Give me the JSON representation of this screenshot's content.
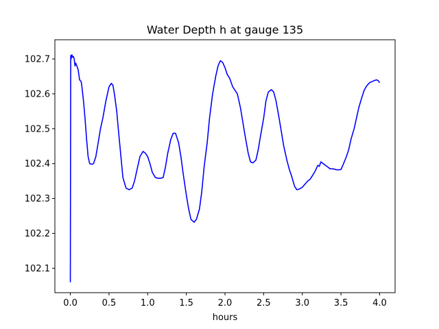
{
  "chart_data": {
    "type": "line",
    "title": "Water Depth h at gauge 135",
    "xlabel": "hours",
    "ylabel": "",
    "xlim": [
      -0.2,
      4.2
    ],
    "ylim": [
      102.03,
      102.755
    ],
    "xticks": [
      {
        "value": 0.0,
        "label": "0.0"
      },
      {
        "value": 0.5,
        "label": "0.5"
      },
      {
        "value": 1.0,
        "label": "1.0"
      },
      {
        "value": 1.5,
        "label": "1.5"
      },
      {
        "value": 2.0,
        "label": "2.0"
      },
      {
        "value": 2.5,
        "label": "2.5"
      },
      {
        "value": 3.0,
        "label": "3.0"
      },
      {
        "value": 3.5,
        "label": "3.5"
      },
      {
        "value": 4.0,
        "label": "4.0"
      }
    ],
    "yticks": [
      {
        "value": 102.1,
        "label": "102.1"
      },
      {
        "value": 102.2,
        "label": "102.2"
      },
      {
        "value": 102.3,
        "label": "102.3"
      },
      {
        "value": 102.4,
        "label": "102.4"
      },
      {
        "value": 102.5,
        "label": "102.5"
      },
      {
        "value": 102.6,
        "label": "102.6"
      },
      {
        "value": 102.7,
        "label": "102.7"
      }
    ],
    "grid": false,
    "series": [
      {
        "color": "#0000ff",
        "x": [
          0.0,
          0.005,
          0.01,
          0.02,
          0.03,
          0.04,
          0.05,
          0.06,
          0.07,
          0.08,
          0.1,
          0.12,
          0.14,
          0.15,
          0.17,
          0.19,
          0.21,
          0.23,
          0.25,
          0.28,
          0.3,
          0.33,
          0.36,
          0.39,
          0.42,
          0.46,
          0.5,
          0.53,
          0.55,
          0.57,
          0.6,
          0.62,
          0.65,
          0.68,
          0.72,
          0.76,
          0.8,
          0.83,
          0.86,
          0.9,
          0.94,
          0.97,
          1.0,
          1.03,
          1.06,
          1.1,
          1.13,
          1.17,
          1.2,
          1.23,
          1.26,
          1.3,
          1.33,
          1.36,
          1.4,
          1.43,
          1.46,
          1.5,
          1.53,
          1.56,
          1.6,
          1.63,
          1.67,
          1.7,
          1.73,
          1.77,
          1.8,
          1.84,
          1.88,
          1.91,
          1.94,
          1.97,
          2.0,
          2.03,
          2.06,
          2.1,
          2.13,
          2.16,
          2.2,
          2.23,
          2.26,
          2.3,
          2.33,
          2.36,
          2.4,
          2.43,
          2.46,
          2.5,
          2.53,
          2.56,
          2.6,
          2.63,
          2.66,
          2.7,
          2.73,
          2.76,
          2.8,
          2.83,
          2.86,
          2.9,
          2.93,
          2.96,
          3.0,
          3.03,
          3.07,
          3.1,
          3.13,
          3.17,
          3.2,
          3.22,
          3.24,
          3.27,
          3.3,
          3.33,
          3.36,
          3.4,
          3.43,
          3.46,
          3.5,
          3.53,
          3.57,
          3.6,
          3.63,
          3.67,
          3.7,
          3.73,
          3.77,
          3.8,
          3.83,
          3.87,
          3.9,
          3.93,
          3.96,
          3.98,
          4.0
        ],
        "y": [
          102.06,
          102.71,
          102.7,
          102.712,
          102.705,
          102.707,
          102.7,
          102.68,
          102.688,
          102.682,
          102.67,
          102.64,
          102.635,
          102.62,
          102.58,
          102.53,
          102.47,
          102.42,
          102.4,
          102.398,
          102.4,
          102.42,
          102.46,
          102.5,
          102.53,
          102.58,
          102.62,
          102.63,
          102.625,
          102.6,
          102.55,
          102.5,
          102.43,
          102.36,
          102.33,
          102.325,
          102.33,
          102.35,
          102.38,
          102.42,
          102.435,
          102.43,
          102.42,
          102.4,
          102.375,
          102.36,
          102.358,
          102.358,
          102.36,
          102.39,
          102.43,
          102.47,
          102.487,
          102.487,
          102.46,
          102.42,
          102.37,
          102.31,
          102.27,
          102.24,
          102.232,
          102.24,
          102.27,
          102.32,
          102.39,
          102.46,
          102.53,
          102.6,
          102.65,
          102.68,
          102.695,
          102.69,
          102.675,
          102.655,
          102.645,
          102.62,
          102.61,
          102.6,
          102.56,
          102.52,
          102.48,
          102.43,
          102.405,
          102.402,
          102.41,
          102.44,
          102.48,
          102.53,
          102.58,
          102.605,
          102.612,
          102.605,
          102.58,
          102.53,
          102.49,
          102.45,
          102.41,
          102.385,
          102.365,
          102.335,
          102.325,
          102.327,
          102.332,
          102.34,
          102.35,
          102.355,
          102.365,
          102.38,
          102.395,
          102.392,
          102.405,
          102.4,
          102.395,
          102.39,
          102.385,
          102.385,
          102.383,
          102.382,
          102.383,
          102.398,
          102.42,
          102.44,
          102.47,
          102.5,
          102.53,
          102.56,
          102.59,
          102.61,
          102.622,
          102.632,
          102.635,
          102.638,
          102.64,
          102.638,
          102.632
        ]
      }
    ]
  }
}
